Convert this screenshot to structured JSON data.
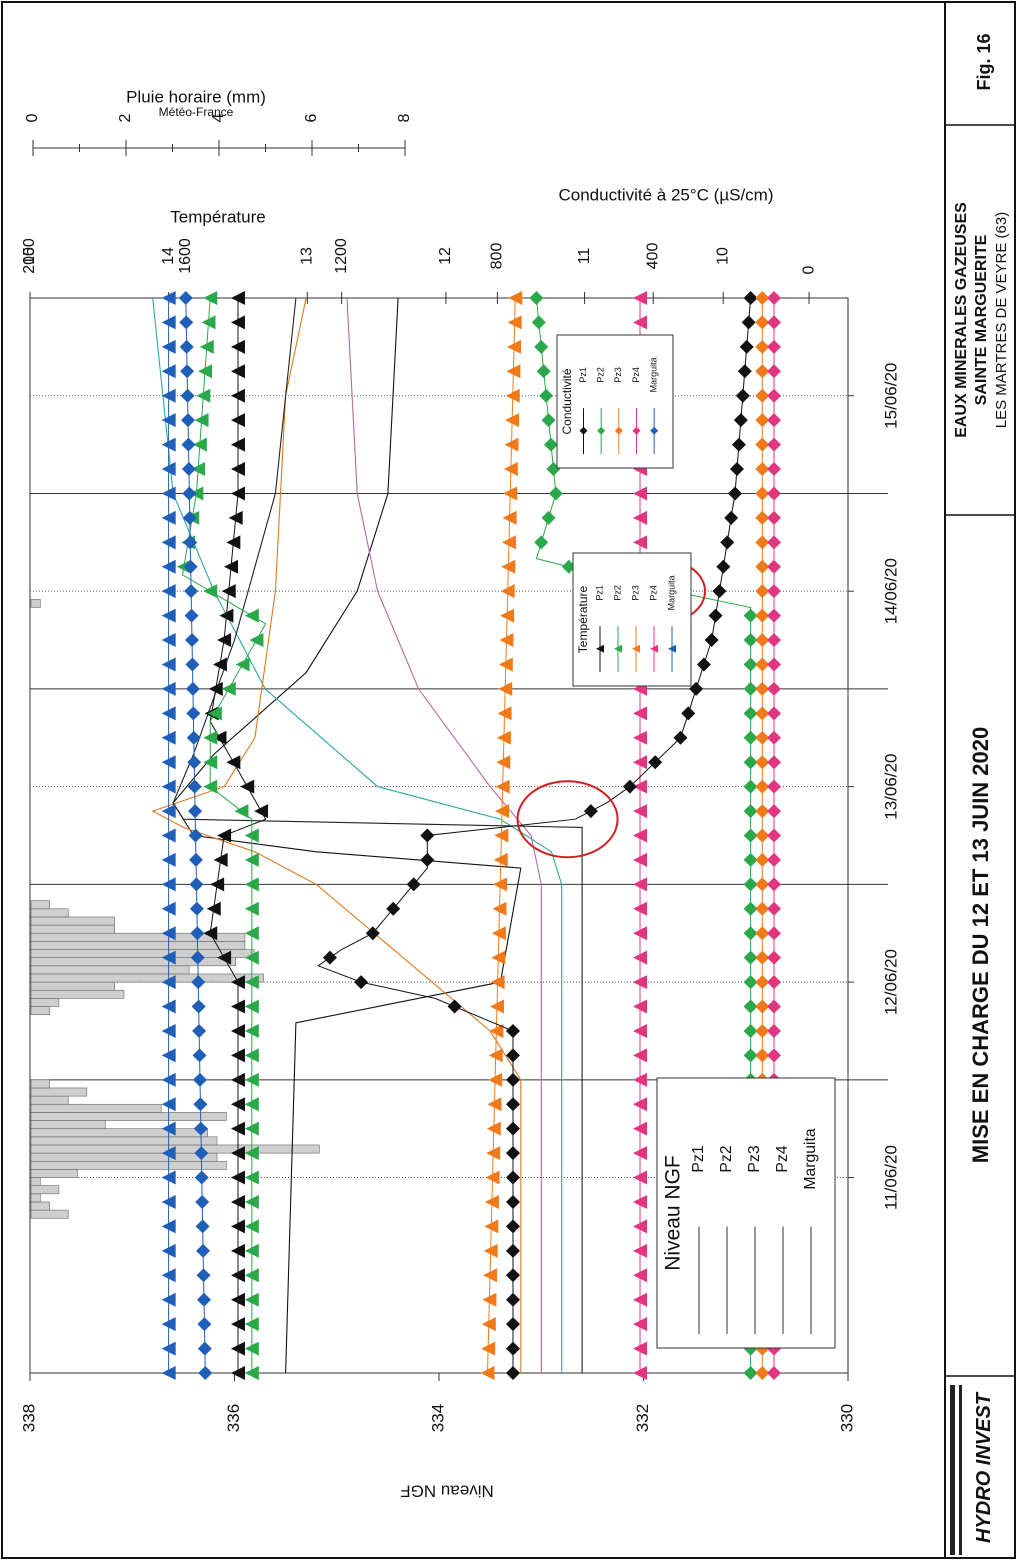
{
  "figure": {
    "fig_label": "Fig. 16",
    "company": "HYDRO INVEST",
    "title": "MISE EN CHARGE DU 12 ET 13 JUIN 2020",
    "site_line1": "EAUX MINERALES GAZEUSES",
    "site_line2": "SAINTE MARGUERITE",
    "site_line3": "LES MARTRES DE VEYRE (63)"
  },
  "chart_data": {
    "type": "line",
    "orientation": "rotated-90-ccw",
    "grid": true,
    "x": {
      "labels": [
        "11/06/20",
        "12/06/20",
        "13/06/20",
        "14/06/20",
        "15/06/20"
      ],
      "range": [
        "2020-06-10 12:00",
        "2020-06-16 00:00"
      ]
    },
    "axes": {
      "level": {
        "label": "Niveau NGF",
        "ticks": [
          330,
          332,
          334,
          336,
          338
        ],
        "range": [
          329.8,
          338
        ]
      },
      "rain": {
        "label": "Pluie horaire (mm)",
        "sublabel": "Météo-France",
        "ticks": [
          0,
          2,
          4,
          6,
          8
        ],
        "range": [
          0,
          8
        ]
      },
      "temperature": {
        "label": "Température",
        "ticks": [
          10,
          11,
          12,
          13,
          14,
          15
        ],
        "range": [
          9.1,
          15
        ]
      },
      "conductivity": {
        "label": "Conductivité à 25°C (µS/cm)",
        "ticks": [
          0,
          400,
          800,
          1200,
          1600,
          2000
        ],
        "range": [
          -100,
          2000
        ]
      }
    },
    "legends": {
      "level": {
        "title": "Niveau NGF",
        "items": [
          "Pz1",
          "Pz2",
          "Pz3",
          "Pz4",
          "Marguita"
        ]
      },
      "temperature": {
        "title": "Température",
        "items": [
          "Pz1",
          "Pz2",
          "Pz3",
          "Pz4",
          "Marguita"
        ]
      },
      "conductivity": {
        "title": "Conductivité",
        "items": [
          "Pz1",
          "Pz2",
          "Pz3",
          "Pz4",
          "Marguita"
        ]
      }
    },
    "colors": {
      "Pz1": "#111111",
      "Pz2": "#2aa84a",
      "Pz3": "#f07a1a",
      "Pz4": "#e0357f",
      "Marguita": "#1f5fb8"
    },
    "rain": {
      "x": [
        "2020-06-11 07:00",
        "2020-06-11 08:00",
        "2020-06-11 09:00",
        "2020-06-11 10:00",
        "2020-06-11 11:00",
        "2020-06-11 12:00",
        "2020-06-11 13:00",
        "2020-06-11 14:00",
        "2020-06-11 15:00",
        "2020-06-11 16:00",
        "2020-06-11 17:00",
        "2020-06-11 18:00",
        "2020-06-11 19:00",
        "2020-06-11 20:00",
        "2020-06-11 21:00",
        "2020-06-11 22:00",
        "2020-06-11 23:00",
        "2020-06-12 08:00",
        "2020-06-12 09:00",
        "2020-06-12 10:00",
        "2020-06-12 11:00",
        "2020-06-12 12:00",
        "2020-06-12 13:00",
        "2020-06-12 14:00",
        "2020-06-12 15:00",
        "2020-06-12 16:00",
        "2020-06-12 17:00",
        "2020-06-12 18:00",
        "2020-06-12 19:00",
        "2020-06-12 20:00",
        "2020-06-12 21:00",
        "2020-06-14 10:00"
      ],
      "values": [
        0.8,
        0.4,
        0.2,
        0.6,
        0.2,
        1.0,
        4.2,
        4.0,
        6.2,
        4.0,
        3.8,
        1.6,
        4.2,
        2.8,
        0.8,
        1.2,
        0.4,
        0.4,
        0.6,
        2.0,
        1.8,
        5.0,
        3.4,
        4.4,
        4.8,
        4.6,
        4.6,
        1.8,
        1.8,
        0.8,
        0.4,
        0.2
      ]
    },
    "level_series": [
      {
        "name": "Pz1",
        "x": [
          "2020-06-10 12:00",
          "2020-06-12 07:00",
          "2020-06-12 12:00",
          "2020-06-13 02:00",
          "2020-06-13 04:00",
          "2020-06-13 06:00",
          "2020-06-13 10:00",
          "2020-06-13 16:00",
          "2020-06-14 02:00",
          "2020-06-14 12:00",
          "2020-06-15 00:00",
          "2020-06-16 00:00"
        ],
        "values": [
          335.5,
          335.4,
          333.4,
          333.2,
          335.2,
          336.4,
          336.6,
          336.2,
          335.3,
          334.8,
          334.5,
          334.4
        ]
      },
      {
        "name": "Pz2",
        "x": [
          "2020-06-10 12:00",
          "2020-06-12 12:00",
          "2020-06-13 00:00",
          "2020-06-13 04:00",
          "2020-06-13 08:00",
          "2020-06-13 12:00",
          "2020-06-14 00:00",
          "2020-06-14 12:00",
          "2020-06-15 00:00",
          "2020-06-16 00:00"
        ],
        "values": [
          332.8,
          332.8,
          332.8,
          332.9,
          333.4,
          334.6,
          335.7,
          336.2,
          336.6,
          336.8
        ]
      },
      {
        "name": "Pz3",
        "x": [
          "2020-06-10 12:00",
          "2020-06-12 00:00",
          "2020-06-12 06:00",
          "2020-06-13 00:00",
          "2020-06-13 04:00",
          "2020-06-13 07:00",
          "2020-06-13 09:00",
          "2020-06-13 12:00",
          "2020-06-13 18:00",
          "2020-06-14 12:00",
          "2020-06-15 12:00",
          "2020-06-16 00:00"
        ],
        "values": [
          333.2,
          333.2,
          333.5,
          335.2,
          335.8,
          336.5,
          336.8,
          336.1,
          335.8,
          335.6,
          335.5,
          335.3
        ]
      },
      {
        "name": "Pz4",
        "x": [
          "2020-06-10 12:00",
          "2020-06-12 12:00",
          "2020-06-13 00:00",
          "2020-06-13 06:00",
          "2020-06-13 12:00",
          "2020-06-14 00:00",
          "2020-06-14 12:00",
          "2020-06-15 00:00",
          "2020-06-16 00:00"
        ],
        "values": [
          333.0,
          333.0,
          333.0,
          333.1,
          333.5,
          334.2,
          334.6,
          334.8,
          334.9
        ]
      },
      {
        "name": "Marguita",
        "x": [
          "2020-06-10 12:00",
          "2020-06-12 12:00",
          "2020-06-13 00:00",
          "2020-06-13 07:00",
          "2020-06-13 08:00",
          "2020-06-13 10:00",
          "2020-06-13 16:00",
          "2020-06-14 06:00",
          "2020-06-15 00:00",
          "2020-06-16 00:00"
        ],
        "values": [
          332.6,
          332.6,
          332.6,
          332.6,
          336.5,
          336.6,
          336.4,
          336.0,
          335.6,
          335.4
        ]
      }
    ],
    "temperature_series": [
      {
        "name": "Pz1",
        "x": [
          "2020-06-10 12:00",
          "2020-06-11 12:00",
          "2020-06-12 12:00",
          "2020-06-12 18:00",
          "2020-06-13 06:00",
          "2020-06-13 08:00",
          "2020-06-13 14:00",
          "2020-06-13 20:00",
          "2020-06-14 06:00",
          "2020-06-15 00:00",
          "2020-06-16 00:00"
        ],
        "values": [
          13.5,
          13.5,
          13.5,
          13.7,
          13.6,
          13.3,
          13.5,
          13.7,
          13.6,
          13.5,
          13.5
        ]
      },
      {
        "name": "Pz2",
        "x": [
          "2020-06-10 12:00",
          "2020-06-12 12:00",
          "2020-06-13 08:00",
          "2020-06-13 12:00",
          "2020-06-13 20:00",
          "2020-06-14 08:00",
          "2020-06-14 14:00",
          "2020-06-15 00:00",
          "2020-06-16 00:00"
        ],
        "values": [
          13.4,
          13.4,
          13.4,
          13.7,
          13.7,
          13.3,
          13.9,
          13.8,
          13.7
        ]
      },
      {
        "name": "Pz3",
        "x": [
          "2020-06-10 12:00",
          "2020-06-16 00:00"
        ],
        "values": [
          11.7,
          11.5
        ]
      },
      {
        "name": "Pz4",
        "x": [
          "2020-06-10 12:00",
          "2020-06-16 00:00"
        ],
        "values": [
          10.6,
          10.6
        ]
      },
      {
        "name": "Marguita",
        "x": [
          "2020-06-10 12:00",
          "2020-06-16 00:00"
        ],
        "values": [
          14.0,
          14.0
        ]
      }
    ],
    "conductivity_series": [
      {
        "name": "Pz1",
        "x": [
          "2020-06-10 12:00",
          "2020-06-12 06:00",
          "2020-06-12 10:00",
          "2020-06-12 12:00",
          "2020-06-12 14:00",
          "2020-06-12 16:00",
          "2020-06-12 18:00",
          "2020-06-13 02:00",
          "2020-06-13 06:00",
          "2020-06-13 08:00",
          "2020-06-13 10:00",
          "2020-06-13 12:00",
          "2020-06-13 18:00",
          "2020-06-14 06:00",
          "2020-06-15 00:00",
          "2020-06-16 00:00"
        ],
        "values": [
          760,
          760,
          960,
          1150,
          1260,
          1200,
          1120,
          980,
          980,
          600,
          520,
          460,
          330,
          250,
          190,
          150
        ]
      },
      {
        "name": "Pz2",
        "x": [
          "2020-06-10 12:00",
          "2020-06-14 10:00",
          "2020-06-14 13:00",
          "2020-06-14 16:00",
          "2020-06-15 00:00",
          "2020-06-16 00:00"
        ],
        "values": [
          150,
          150,
          450,
          700,
          650,
          700
        ]
      },
      {
        "name": "Pz3",
        "x": [
          "2020-06-10 12:00",
          "2020-06-16 00:00"
        ],
        "values": [
          120,
          120
        ]
      },
      {
        "name": "Pz4",
        "x": [
          "2020-06-10 12:00",
          "2020-06-16 00:00"
        ],
        "values": [
          90,
          90
        ]
      },
      {
        "name": "Marguita",
        "x": [
          "2020-06-10 12:00",
          "2020-06-16 00:00"
        ],
        "values": [
          1550,
          1600
        ]
      }
    ],
    "annotations": [
      {
        "type": "ellipse",
        "color": "#d22020",
        "x": "2020-06-13 08:00",
        "conductivity": 620
      },
      {
        "type": "ellipse",
        "color": "#d22020",
        "x": "2020-06-14 12:00",
        "conductivity": 380
      }
    ]
  }
}
